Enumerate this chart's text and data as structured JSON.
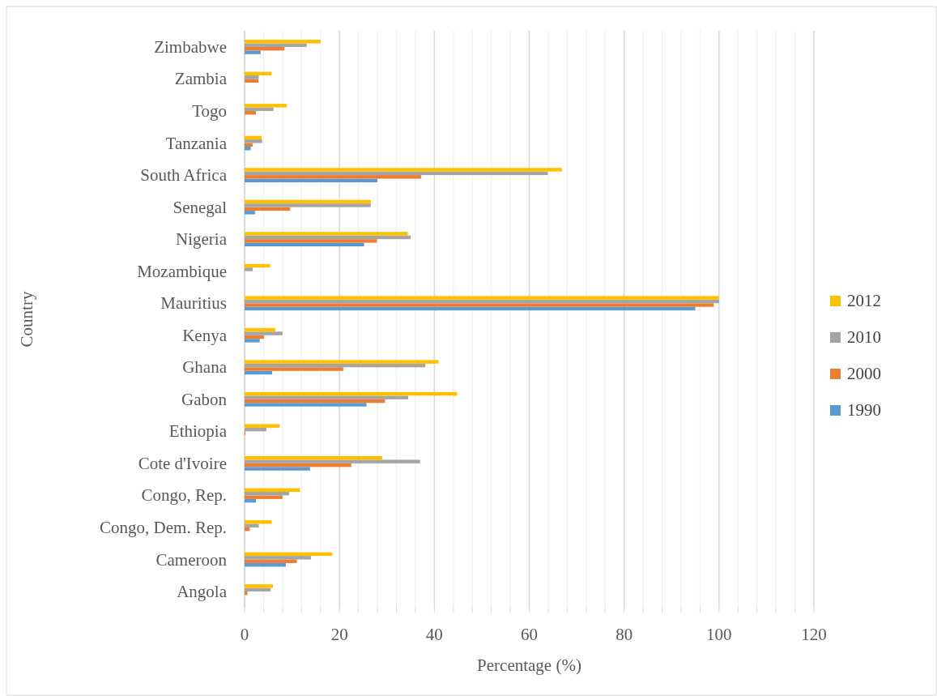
{
  "chart_data": {
    "type": "bar",
    "orientation": "horizontal",
    "xlabel": "Percentage (%)",
    "ylabel": "Country",
    "categories": [
      "Zimbabwe",
      "Zambia",
      "Togo",
      "Tanzania",
      "South Africa",
      "Senegal",
      "Nigeria",
      "Mozambique",
      "Mauritius",
      "Kenya",
      "Ghana",
      "Gabon",
      "Ethiopia",
      "Cote d'Ivoire",
      "Congo, Rep.",
      "Congo, Dem. Rep.",
      "Cameroon",
      "Angola"
    ],
    "series": [
      {
        "name": "1990",
        "color": "#5b9bd5",
        "values": [
          3.4,
          null,
          null,
          1.3,
          28.0,
          2.2,
          25.2,
          null,
          95.0,
          3.2,
          5.8,
          25.7,
          null,
          13.8,
          2.4,
          null,
          8.7,
          null
        ]
      },
      {
        "name": "2000",
        "color": "#ed7d31",
        "values": [
          8.4,
          2.9,
          2.4,
          1.7,
          37.2,
          9.6,
          27.9,
          null,
          98.9,
          4.1,
          20.8,
          29.6,
          0.2,
          22.5,
          8.0,
          1.1,
          11.0,
          0.6
        ]
      },
      {
        "name": "2010",
        "color": "#a5a5a5",
        "values": [
          13.1,
          3.0,
          6.1,
          3.7,
          63.9,
          26.6,
          35.0,
          1.7,
          100,
          8.0,
          38.1,
          34.5,
          4.6,
          37.0,
          9.4,
          3.0,
          14.0,
          5.5
        ]
      },
      {
        "name": "2012",
        "color": "#ffc000",
        "values": [
          16.0,
          5.7,
          8.9,
          3.6,
          66.9,
          26.6,
          34.4,
          5.4,
          100,
          6.5,
          40.9,
          44.8,
          7.4,
          29.0,
          11.7,
          5.7,
          18.5,
          6.0
        ]
      }
    ],
    "xlim": [
      0,
      120
    ],
    "xticks": [
      0,
      {
        "value": 4,
        "label": null
      },
      {
        "value": 8,
        "label": null
      },
      {
        "value": 12,
        "label": null
      },
      {
        "value": 16,
        "label": null
      },
      20,
      {
        "value": 24,
        "label": null
      },
      {
        "value": 28,
        "label": null
      },
      {
        "value": 32,
        "label": null
      },
      {
        "value": 36,
        "label": null
      },
      40,
      {
        "value": 44,
        "label": null
      },
      {
        "value": 48,
        "label": null
      },
      {
        "value": 52,
        "label": null
      },
      {
        "value": 56,
        "label": null
      },
      60,
      {
        "value": 64,
        "label": null
      },
      {
        "value": 68,
        "label": null
      },
      {
        "value": 72,
        "label": null
      },
      {
        "value": 76,
        "label": null
      },
      80,
      {
        "value": 84,
        "label": null
      },
      {
        "value": 88,
        "label": null
      },
      {
        "value": 92,
        "label": null
      },
      {
        "value": 96,
        "label": null
      },
      100,
      {
        "value": 104,
        "label": null
      },
      {
        "value": 108,
        "label": null
      },
      {
        "value": 112,
        "label": null
      },
      {
        "value": 116,
        "label": null
      },
      120
    ],
    "grid": "x",
    "legend": "right"
  }
}
